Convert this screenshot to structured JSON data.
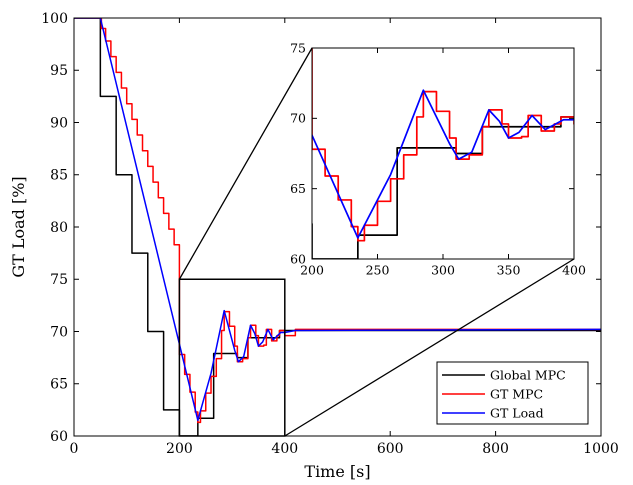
{
  "chart_data": [
    {
      "type": "line",
      "xlabel": "Time [s]",
      "ylabel": "GT Load [%]",
      "xlim": [
        0,
        1000
      ],
      "ylim": [
        60,
        100
      ],
      "xticks": [
        "0",
        "200",
        "400",
        "600",
        "800",
        "1000"
      ],
      "yticks": [
        "60",
        "65",
        "70",
        "75",
        "80",
        "85",
        "90",
        "95",
        "100"
      ],
      "grid": false,
      "legend_position": "bottom-right",
      "zoom_rectangle": {
        "x": [
          200,
          400
        ],
        "y": [
          60,
          75
        ]
      },
      "series": [
        {
          "name": "Global MPC",
          "color": "#000000",
          "step": true,
          "points": [
            [
              0,
              100
            ],
            [
              50,
              100
            ],
            [
              50,
              92.5
            ],
            [
              80,
              92.5
            ],
            [
              80,
              85
            ],
            [
              110,
              85
            ],
            [
              110,
              77.5
            ],
            [
              140,
              77.5
            ],
            [
              140,
              70
            ],
            [
              170,
              70
            ],
            [
              170,
              62.5
            ],
            [
              200,
              62.5
            ],
            [
              200,
              60
            ],
            [
              235,
              60
            ],
            [
              235,
              61.7
            ],
            [
              265,
              61.7
            ],
            [
              265,
              67.9
            ],
            [
              310,
              67.9
            ],
            [
              310,
              67.5
            ],
            [
              330,
              67.5
            ],
            [
              330,
              69.4
            ],
            [
              390,
              69.4
            ],
            [
              390,
              70.1
            ],
            [
              1000,
              70.1
            ]
          ]
        },
        {
          "name": "GT MPC",
          "color": "#ff0000",
          "step": true,
          "points": [
            [
              0,
              100
            ],
            [
              50,
              100
            ],
            [
              52,
              99
            ],
            [
              60,
              97.8
            ],
            [
              70,
              96.3
            ],
            [
              80,
              94.8
            ],
            [
              90,
              93.3
            ],
            [
              100,
              91.8
            ],
            [
              110,
              90.3
            ],
            [
              120,
              88.8
            ],
            [
              130,
              87.3
            ],
            [
              140,
              85.8
            ],
            [
              150,
              84.3
            ],
            [
              160,
              82.8
            ],
            [
              170,
              81.3
            ],
            [
              180,
              79.8
            ],
            [
              190,
              78.3
            ],
            [
              200,
              67.8
            ],
            [
              210,
              65.9
            ],
            [
              220,
              64.2
            ],
            [
              230,
              62.3
            ],
            [
              235,
              61.3
            ],
            [
              240,
              62.4
            ],
            [
              250,
              64.1
            ],
            [
              260,
              65.7
            ],
            [
              270,
              67.4
            ],
            [
              280,
              70.1
            ],
            [
              285,
              71.9
            ],
            [
              295,
              70.5
            ],
            [
              305,
              68.6
            ],
            [
              310,
              67.1
            ],
            [
              320,
              67.4
            ],
            [
              330,
              69.4
            ],
            [
              335,
              70.6
            ],
            [
              345,
              69.6
            ],
            [
              350,
              68.6
            ],
            [
              360,
              68.7
            ],
            [
              365,
              70.2
            ],
            [
              375,
              69.1
            ],
            [
              385,
              69.6
            ],
            [
              390,
              70.1
            ],
            [
              400,
              69.6
            ],
            [
              420,
              70.2
            ],
            [
              1000,
              70.2
            ]
          ]
        },
        {
          "name": "GT Load",
          "color": "#0000ff",
          "step": false,
          "points": [
            [
              0,
              100
            ],
            [
              50,
              100
            ],
            [
              200,
              68.8
            ],
            [
              235,
              61.5
            ],
            [
              260,
              66
            ],
            [
              285,
              72
            ],
            [
              305,
              68.2
            ],
            [
              312,
              67.1
            ],
            [
              322,
              67.6
            ],
            [
              335,
              70.6
            ],
            [
              343,
              69.8
            ],
            [
              350,
              68.6
            ],
            [
              358,
              69
            ],
            [
              368,
              70.2
            ],
            [
              378,
              69.2
            ],
            [
              392,
              69.9
            ],
            [
              400,
              69.9
            ],
            [
              420,
              70.1
            ],
            [
              1000,
              70.2
            ]
          ]
        }
      ]
    },
    {
      "type": "line",
      "title": "",
      "xlim": [
        200,
        400
      ],
      "ylim": [
        60,
        75
      ],
      "xticks": [
        "200",
        "250",
        "300",
        "350",
        "400"
      ],
      "yticks": [
        "60",
        "65",
        "70",
        "75"
      ],
      "grid": false,
      "series_ref": "same series as main plot, zoomed to 200–400 s"
    }
  ]
}
